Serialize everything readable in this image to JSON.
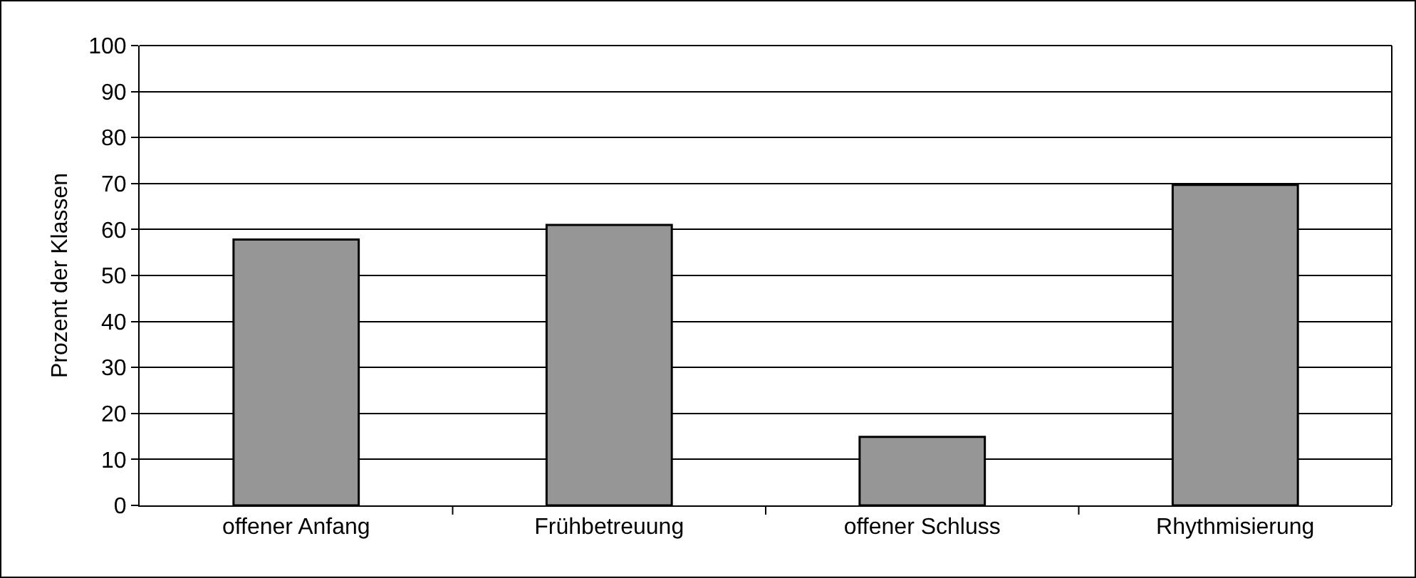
{
  "chart_data": {
    "type": "bar",
    "ylabel": "Prozent der Klassen",
    "categories": [
      "offener Anfang",
      "Frühbetreuung",
      "offener Schluss",
      "Rhythmisierung"
    ],
    "values": [
      57.8,
      61.0,
      14.9,
      69.7
    ],
    "color": "#969696",
    "ylim": [
      0,
      100
    ],
    "yticks": [
      0,
      10,
      20,
      30,
      40,
      50,
      60,
      70,
      80,
      90,
      100
    ],
    "grid": "y"
  }
}
